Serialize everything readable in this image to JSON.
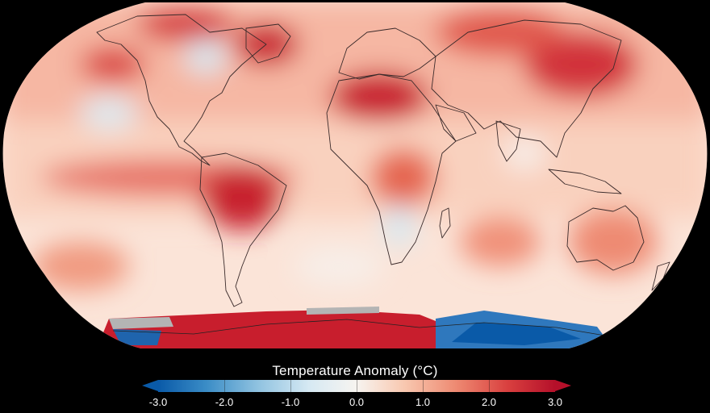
{
  "colorbar": {
    "title": "Temperature Anomaly (°C)",
    "min": -3.0,
    "max": 3.0,
    "tick_labels": [
      "-3.0",
      "-2.0",
      "-1.0",
      "0.0",
      "1.0",
      "2.0",
      "3.0"
    ],
    "colors": [
      "#0a5aa8",
      "#3a8cc6",
      "#8fc2e0",
      "#d6e9f3",
      "#f7f4f0",
      "#f8c8b0",
      "#ee8a72",
      "#d9403f",
      "#b5102a"
    ]
  },
  "map": {
    "projection": "robinson",
    "background": "#000000",
    "neutral_color": "#fbe9df",
    "no_data_color": "#b4b4b4"
  }
}
